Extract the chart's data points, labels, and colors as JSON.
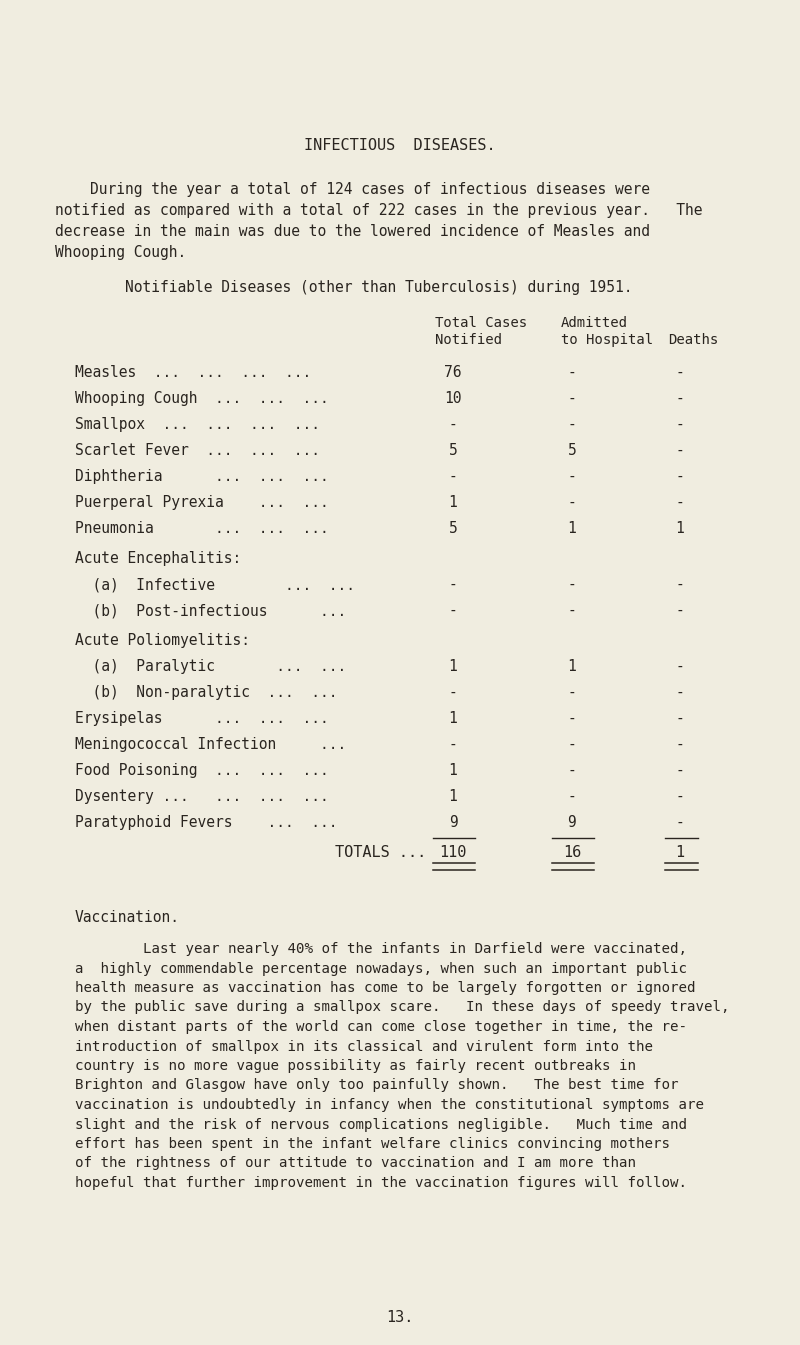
{
  "bg_color": "#f0ede0",
  "text_color": "#2a2520",
  "title": "INFECTIOUS  DISEASES.",
  "intro_line1": "    During the year a total of 124 cases of infectious diseases were",
  "intro_line2": "notified as compared with a total of 222 cases in the previous year.   The",
  "intro_line3": "decrease in the main was due to the lowered incidence of Measles and",
  "intro_line4": "Whooping Cough.",
  "table_title": "        Notifiable Diseases (other than Tuberculosis) during 1951.",
  "header1_notified": "Total Cases",
  "header1_admitted": "Admitted",
  "header2_notified": "Notified",
  "header2_admitted": "to Hospital",
  "header2_deaths": "Deaths",
  "rows": [
    {
      "label": "Measles  ...  ...  ...  ...",
      "dots": true,
      "notified": "76",
      "admitted": "-",
      "deaths": "-",
      "indent": false,
      "header": false
    },
    {
      "label": "Whooping Cough  ...  ...  ...",
      "dots": true,
      "notified": "10",
      "admitted": "-",
      "deaths": "-",
      "indent": false,
      "header": false
    },
    {
      "label": "Smallpox  ...  ...  ...  ...",
      "dots": true,
      "notified": "-",
      "admitted": "-",
      "deaths": "-",
      "indent": false,
      "header": false
    },
    {
      "label": "Scarlet Fever  ...  ...  ...",
      "dots": true,
      "notified": "5",
      "admitted": "5",
      "deaths": "-",
      "indent": false,
      "header": false
    },
    {
      "label": "Diphtheria      ...  ...  ...",
      "dots": true,
      "notified": "-",
      "admitted": "-",
      "deaths": "-",
      "indent": false,
      "header": false
    },
    {
      "label": "Puerperal Pyrexia    ...  ...",
      "dots": true,
      "notified": "1",
      "admitted": "-",
      "deaths": "-",
      "indent": false,
      "header": false
    },
    {
      "label": "Pneumonia       ...  ...  ...",
      "dots": true,
      "notified": "5",
      "admitted": "1",
      "deaths": "1",
      "indent": false,
      "header": false
    },
    {
      "label": "Acute Encephalitis:",
      "dots": false,
      "notified": "",
      "admitted": "",
      "deaths": "",
      "indent": false,
      "header": true
    },
    {
      "label": "  (a)  Infective        ...  ...",
      "dots": true,
      "notified": "-",
      "admitted": "-",
      "deaths": "-",
      "indent": true,
      "header": false
    },
    {
      "label": "  (b)  Post-infectious      ...",
      "dots": true,
      "notified": "-",
      "admitted": "-",
      "deaths": "-",
      "indent": true,
      "header": false
    },
    {
      "label": "Acute Poliomyelitis:",
      "dots": false,
      "notified": "",
      "admitted": "",
      "deaths": "",
      "indent": false,
      "header": true
    },
    {
      "label": "  (a)  Paralytic       ...  ...",
      "dots": true,
      "notified": "1",
      "admitted": "1",
      "deaths": "-",
      "indent": true,
      "header": false
    },
    {
      "label": "  (b)  Non-paralytic  ...  ...",
      "dots": true,
      "notified": "-",
      "admitted": "-",
      "deaths": "-",
      "indent": true,
      "header": false
    },
    {
      "label": "Erysipelas      ...  ...  ...",
      "dots": true,
      "notified": "1",
      "admitted": "-",
      "deaths": "-",
      "indent": false,
      "header": false
    },
    {
      "label": "Meningococcal Infection     ...",
      "dots": true,
      "notified": "-",
      "admitted": "-",
      "deaths": "-",
      "indent": false,
      "header": false
    },
    {
      "label": "Food Poisoning  ...  ...  ...",
      "dots": true,
      "notified": "1",
      "admitted": "-",
      "deaths": "-",
      "indent": false,
      "header": false
    },
    {
      "label": "Dysentery ...   ...  ...  ...",
      "dots": true,
      "notified": "1",
      "admitted": "-",
      "deaths": "-",
      "indent": false,
      "header": false
    },
    {
      "label": "Paratyphoid Fevers    ...  ...",
      "dots": true,
      "notified": "9",
      "admitted": "9",
      "deaths": "-",
      "indent": false,
      "header": false
    }
  ],
  "totals_label": "TOTALS ...",
  "totals_notified": "110",
  "totals_admitted": "16",
  "totals_deaths": "1",
  "vaccination_heading": "Vaccination.",
  "vacc_line1": "        Last year nearly 40% of the infants in Darfield were vaccinated,",
  "vacc_line2": "a  highly commendable percentage nowadays, when such an important public",
  "vacc_line3": "health measure as vaccination has come to be largely forgotten or ignored",
  "vacc_line4": "by the public save during a smallpox scare.   In these days of speedy travel,",
  "vacc_line5": "when distant parts of the world can come close together in time, the re-",
  "vacc_line6": "introduction of smallpox in its classical and virulent form into the",
  "vacc_line7": "country is no more vague possibility as fairly recent outbreaks in",
  "vacc_line8": "Brighton and Glasgow have only too painfully shown.   The best time for",
  "vacc_line9": "vaccination is undoubtedly in infancy when the constitutional symptoms are",
  "vacc_line10": "slight and the risk of nervous complications negligible.   Much time and",
  "vacc_line11": "effort has been spent in the infant welfare clinics convincing mothers",
  "vacc_line12": "of the rightness of our attitude to vaccination and I am more than",
  "vacc_line13": "hopeful that further improvement in the vaccination figures will follow.",
  "page_number": "13."
}
